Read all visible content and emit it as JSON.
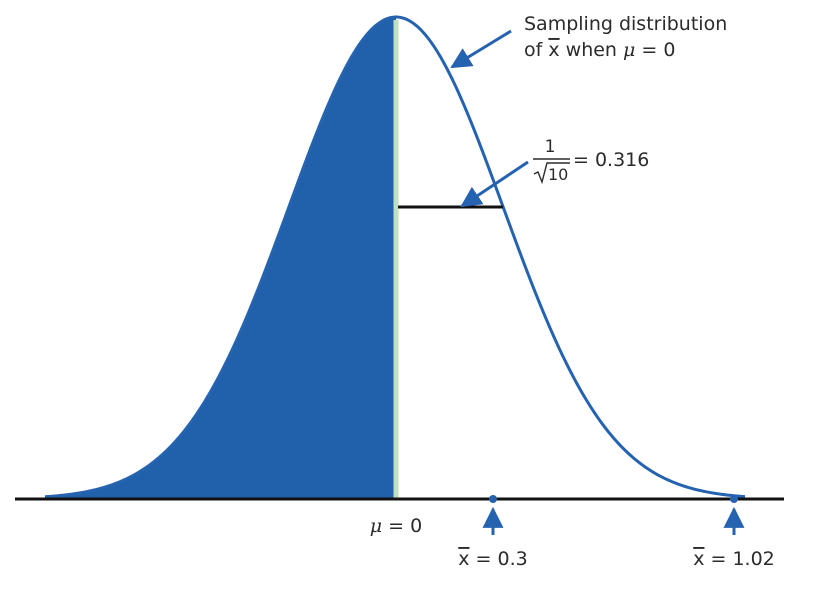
{
  "diagram": {
    "annotation_curve": {
      "line1": "Sampling distribution",
      "line2_pre": "of ",
      "line2_xbar": "x",
      "line2_mid": " when ",
      "line2_mu": "μ",
      "line2_post": " = 0"
    },
    "annotation_sd": {
      "numerator": "1",
      "radicand": "10",
      "result": "= 0.316"
    },
    "labels": {
      "mu_sym": "μ",
      "mu_eq": " = 0",
      "xbar1_sym": "x",
      "xbar1_eq": " = 0.3",
      "xbar2_sym": "x",
      "xbar2_eq": " = 1.02"
    },
    "colors": {
      "curve": "#2563b0",
      "fill": "#2160aa",
      "center_line": "#bfe0c0",
      "axis": "#111111",
      "arrow": "#2563b0"
    }
  }
}
